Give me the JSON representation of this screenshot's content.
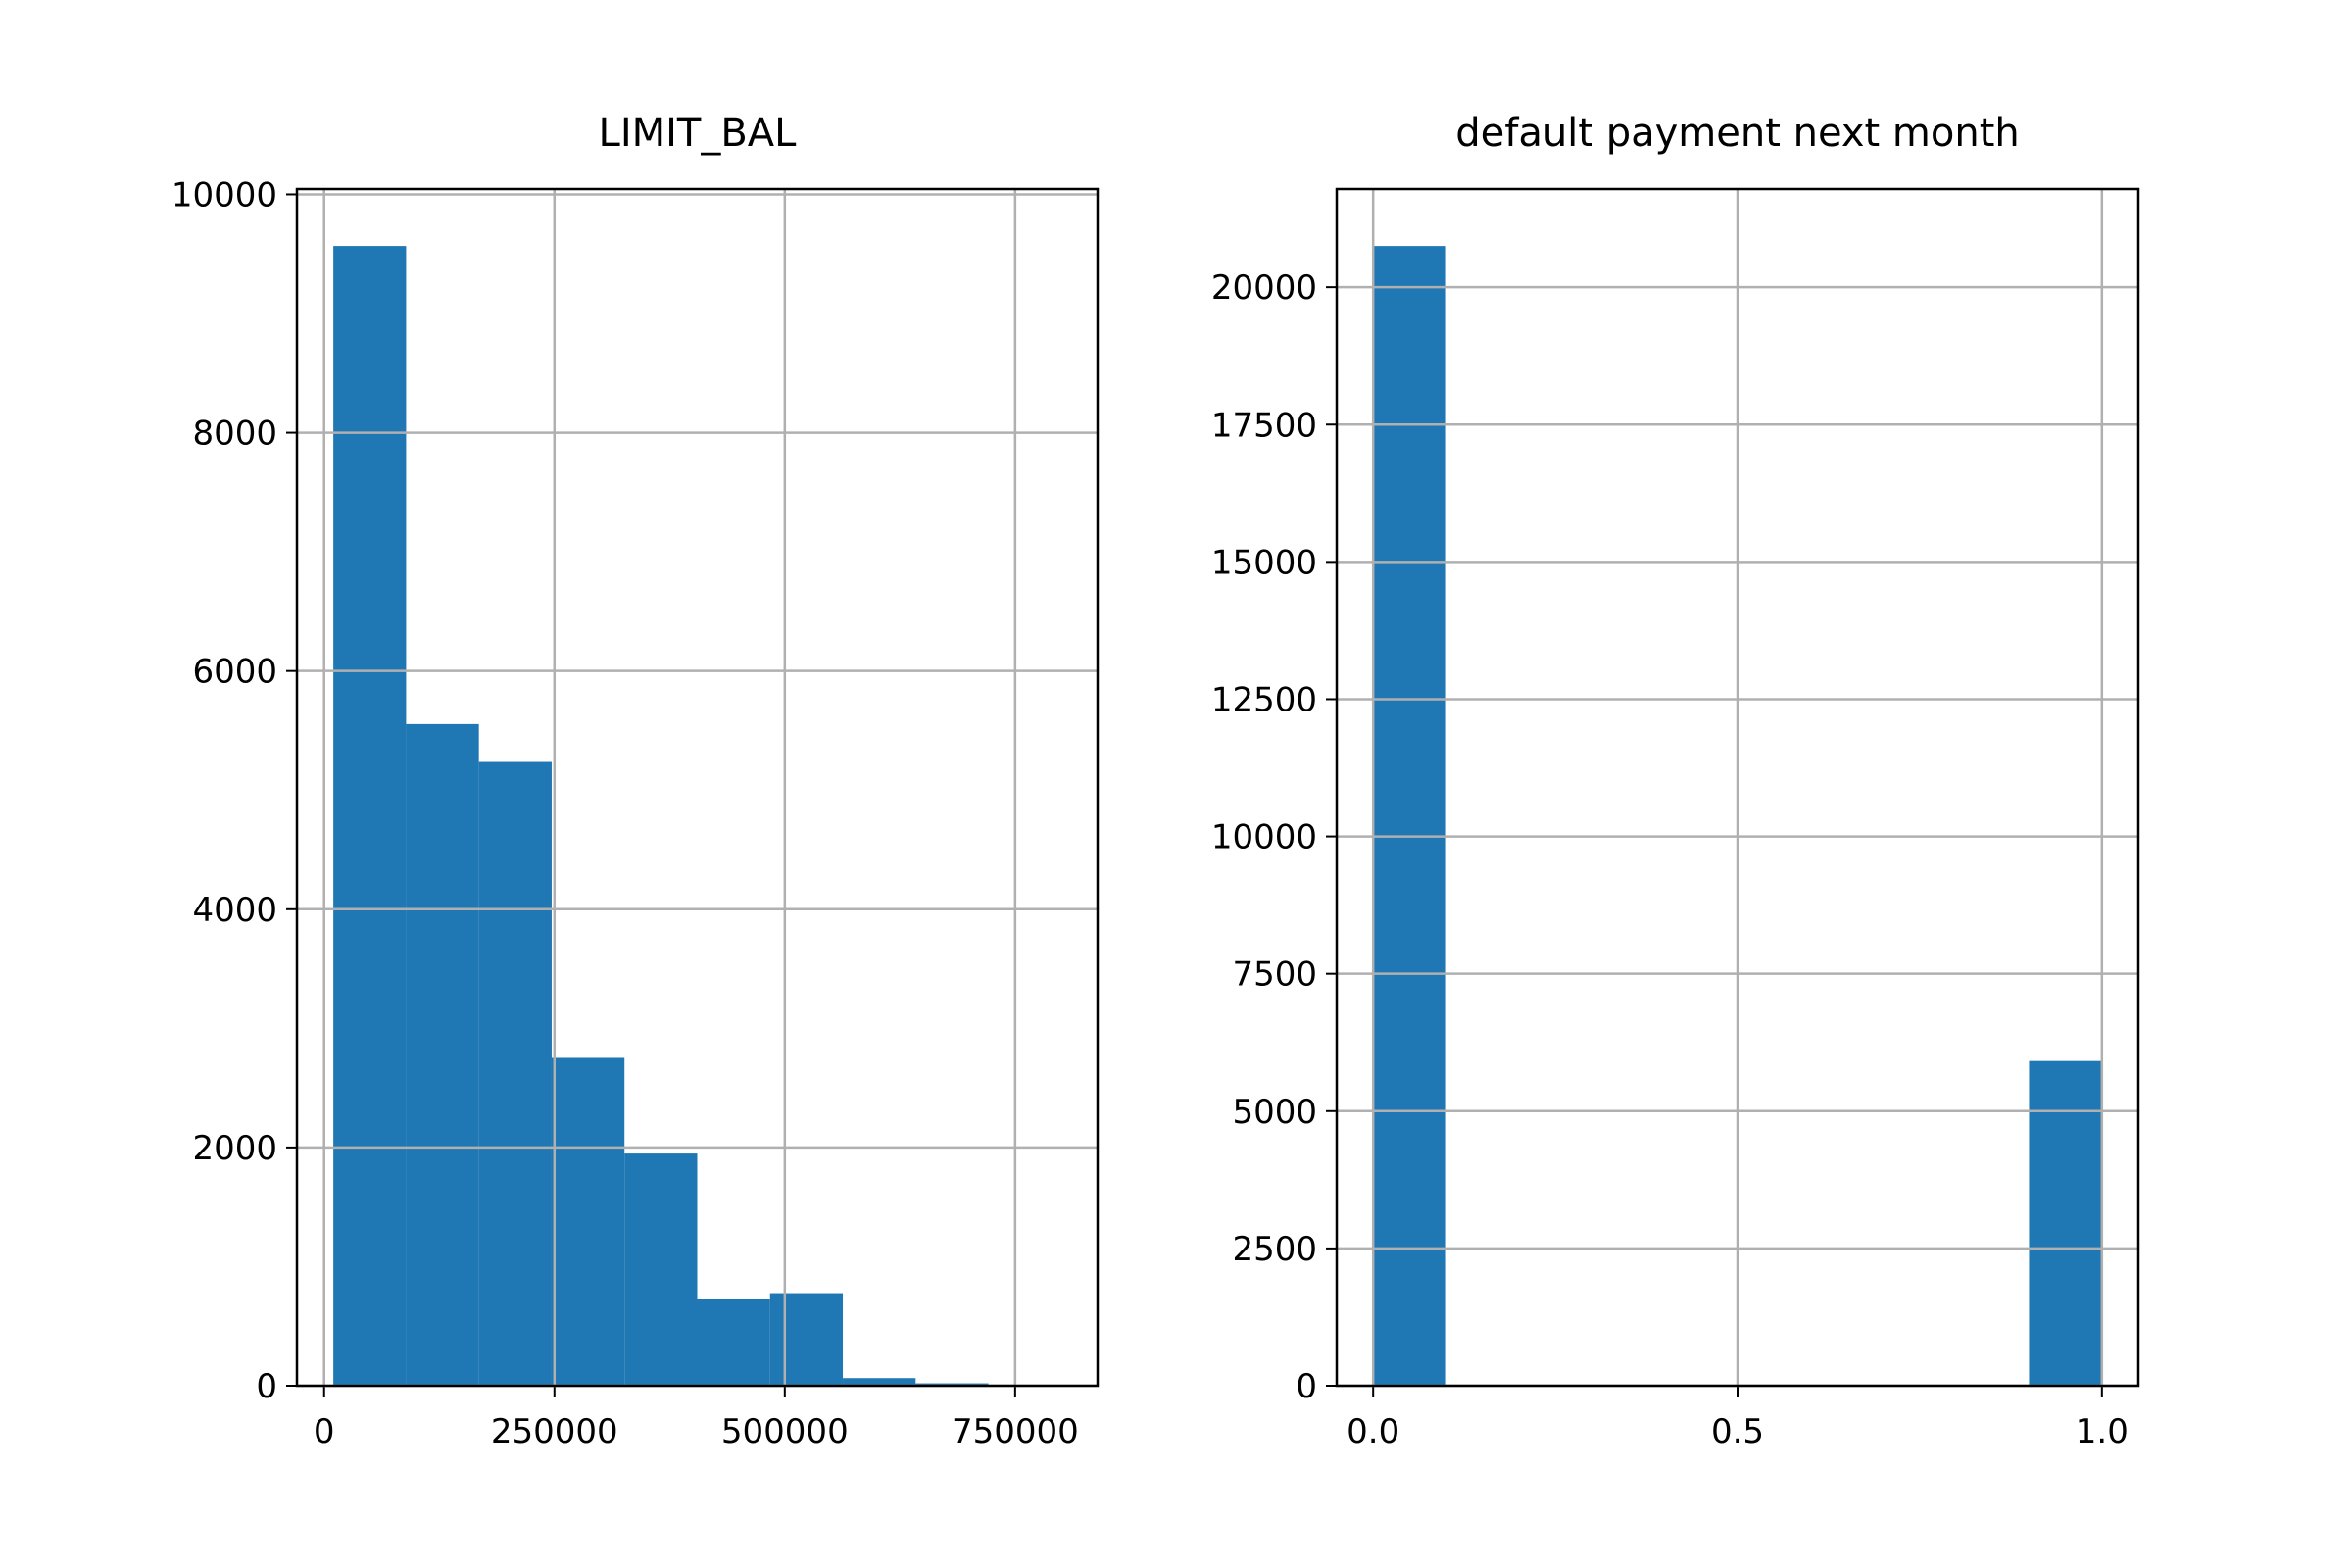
{
  "chart_data": [
    {
      "type": "histogram",
      "title": "LIMIT_BAL",
      "color": "#1f77b4",
      "grid": true,
      "bins": [
        10000,
        89000,
        168000,
        247000,
        326000,
        405000,
        484000,
        563000,
        642000,
        721000,
        800000
      ],
      "values": [
        9567,
        5554,
        5236,
        2752,
        1949,
        726,
        777,
        64,
        20,
        2
      ],
      "xlim": [
        -29500,
        839500
      ],
      "xticks": [
        0,
        250000,
        500000,
        750000
      ],
      "ylim": [
        0,
        10045
      ],
      "yticks": [
        0,
        2000,
        4000,
        6000,
        8000,
        10000
      ]
    },
    {
      "type": "histogram",
      "title": "default payment next month",
      "color": "#1f77b4",
      "grid": true,
      "bins": [
        0,
        0.1,
        0.2,
        0.3,
        0.4,
        0.5,
        0.6,
        0.7,
        0.8,
        0.9,
        1.0
      ],
      "values": [
        20750,
        0,
        0,
        0,
        0,
        0,
        0,
        0,
        0,
        5912
      ],
      "xlim": [
        -0.05,
        1.05
      ],
      "xticks": [
        {
          "value": 0,
          "label": "0.0"
        },
        {
          "value": 0.5,
          "label": "0.5"
        },
        {
          "value": 1,
          "label": "1.0"
        }
      ],
      "ylim": [
        0,
        21787
      ],
      "yticks": [
        0,
        2500,
        5000,
        7500,
        10000,
        12500,
        15000,
        17500,
        20000
      ]
    }
  ]
}
